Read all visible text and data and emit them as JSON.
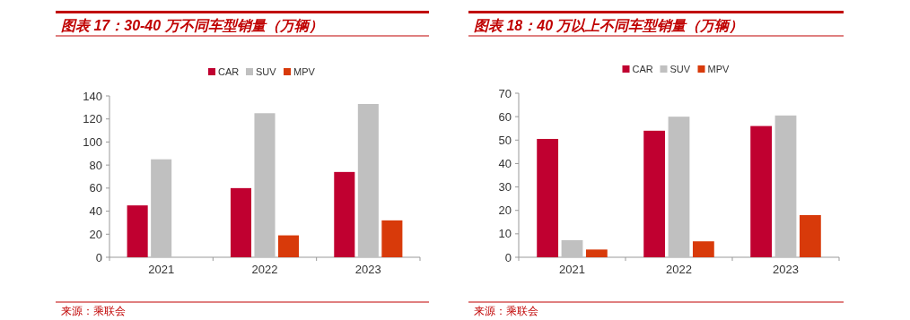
{
  "chart_data": [
    {
      "type": "bar",
      "title": "图表 17：30-40 万不同车型销量（万辆）",
      "categories": [
        "2021",
        "2022",
        "2023"
      ],
      "ylim": [
        0,
        140
      ],
      "yticks": [
        0,
        20,
        40,
        60,
        80,
        100,
        120,
        140
      ],
      "legend": "top",
      "grid": false,
      "annotations": [
        "来源：乘联会"
      ],
      "series": [
        {
          "name": "CAR",
          "color": "#c00030",
          "values": [
            45,
            60,
            74
          ]
        },
        {
          "name": "SUV",
          "color": "#c0c0c0",
          "values": [
            85,
            125,
            133
          ]
        },
        {
          "name": "MPV",
          "color": "#d83a0a",
          "values": [
            null,
            19,
            32
          ]
        }
      ]
    },
    {
      "type": "bar",
      "title": "图表 18：40 万以上不同车型销量（万辆）",
      "categories": [
        "2021",
        "2022",
        "2023"
      ],
      "ylim": [
        0,
        70
      ],
      "yticks": [
        0,
        10,
        20,
        30,
        40,
        50,
        60,
        70
      ],
      "legend": "top",
      "grid": false,
      "annotations": [
        "来源：乘联会"
      ],
      "series": [
        {
          "name": "CAR",
          "color": "#c00030",
          "values": [
            50.5,
            54,
            56
          ]
        },
        {
          "name": "SUV",
          "color": "#c0c0c0",
          "values": [
            7.3,
            60,
            60.5
          ]
        },
        {
          "name": "MPV",
          "color": "#d83a0a",
          "values": [
            3.3,
            6.8,
            18
          ]
        }
      ]
    }
  ]
}
